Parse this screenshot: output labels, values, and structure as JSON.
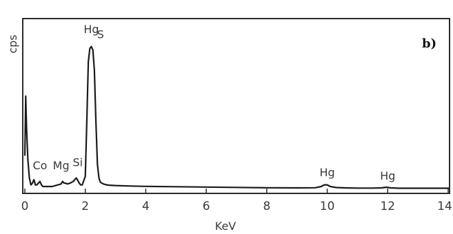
{
  "chart_data": {
    "type": "line",
    "panel_label": "b)",
    "xlabel": "KeV",
    "ylabel": "cps",
    "xlim": [
      0,
      14
    ],
    "ylim": [
      0,
      100
    ],
    "xticks": [
      0,
      2,
      4,
      6,
      8,
      10,
      12,
      14
    ],
    "xtick_labels": [
      "0",
      "2",
      "4",
      "6",
      "8",
      "10",
      "12",
      "14"
    ],
    "grid": false,
    "series": [
      {
        "x": [
          0.0,
          0.03,
          0.06,
          0.1,
          0.15,
          0.2,
          0.25,
          0.3,
          0.35,
          0.4,
          0.45,
          0.5,
          0.55,
          0.6,
          0.7,
          0.8,
          0.9,
          1.0,
          1.1,
          1.2,
          1.25,
          1.3,
          1.35,
          1.4,
          1.5,
          1.6,
          1.7,
          1.74,
          1.8,
          1.85,
          1.9,
          2.0,
          2.05,
          2.1,
          2.15,
          2.2,
          2.25,
          2.3,
          2.35,
          2.4,
          2.45,
          2.5,
          2.6,
          2.7,
          2.8,
          3.0,
          3.5,
          4.0,
          5.0,
          6.0,
          7.0,
          8.0,
          9.0,
          9.6,
          9.8,
          9.9,
          10.0,
          10.1,
          10.3,
          10.6,
          11.0,
          11.5,
          11.8,
          11.95,
          12.1,
          12.4,
          13.0,
          14.0,
          14.3
        ],
        "y": [
          20,
          55,
          35,
          18,
          7,
          3,
          4,
          6,
          3,
          3,
          4,
          5,
          3,
          2,
          2,
          2,
          2,
          2.5,
          3,
          3.5,
          5,
          4,
          4,
          3.5,
          4,
          5,
          7,
          6,
          4,
          3,
          3,
          8,
          40,
          75,
          83,
          84,
          82,
          70,
          40,
          15,
          7,
          4.5,
          3.5,
          3,
          2.8,
          2.6,
          2.3,
          2.1,
          1.9,
          1.7,
          1.5,
          1.3,
          1.2,
          1.3,
          2.0,
          3.0,
          3.0,
          2.0,
          1.4,
          1.2,
          1.1,
          1.1,
          1.2,
          1.6,
          1.2,
          1.0,
          1.0,
          1.0,
          1.0
        ]
      }
    ],
    "annotations": [
      {
        "text": "Co",
        "x": 0.5,
        "y": 12
      },
      {
        "text": "Mg",
        "x": 1.2,
        "y": 12
      },
      {
        "text": "Si",
        "x": 1.75,
        "y": 14
      },
      {
        "text": "Hg",
        "x": 2.2,
        "y": 92
      },
      {
        "text": "S",
        "x": 2.5,
        "y": 89
      },
      {
        "text": "Hg",
        "x": 10.0,
        "y": 8
      },
      {
        "text": "Hg",
        "x": 12.0,
        "y": 6
      }
    ]
  }
}
